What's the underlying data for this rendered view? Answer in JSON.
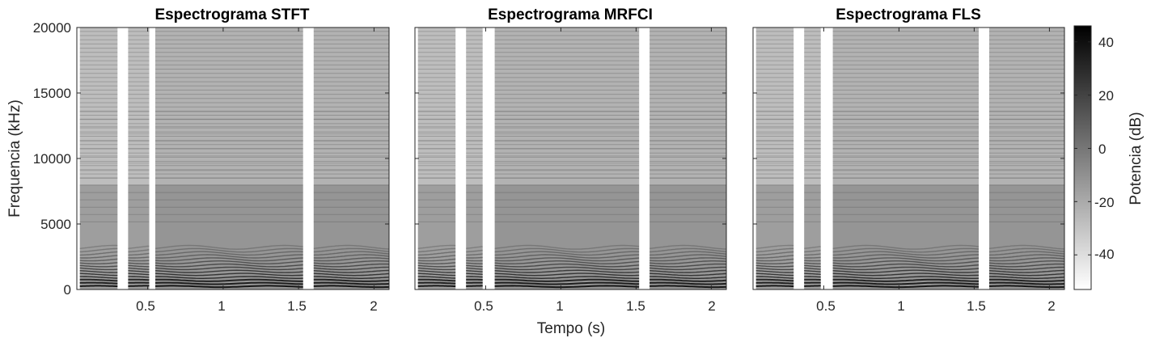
{
  "figure": {
    "x_label": "Tempo (s)",
    "y_label": "Frequencia (kHz)",
    "colorbar_label": "Potencia (dB)"
  },
  "chart_data": [
    {
      "type": "heatmap",
      "title": "Espectrograma STFT",
      "xlim": [
        0.03,
        2.1
      ],
      "ylim": [
        0,
        20000
      ],
      "x_ticks": [
        0.5,
        1,
        1.5,
        2
      ],
      "x_tick_labels": [
        "0.5",
        "1",
        "1.5",
        "2"
      ],
      "y_ticks": [
        0,
        5000,
        10000,
        15000,
        20000
      ],
      "y_tick_labels": [
        "0",
        "5000",
        "10000",
        "15000",
        "20000"
      ],
      "colormap": "gray-reversed",
      "voiced_segments_s": [
        [
          0.05,
          0.3
        ],
        [
          0.37,
          0.51
        ],
        [
          0.55,
          1.53
        ],
        [
          1.6,
          2.1
        ]
      ]
    },
    {
      "type": "heatmap",
      "title": "Espectrograma MRFCI",
      "xlim": [
        0.03,
        2.1
      ],
      "ylim": [
        0,
        20000
      ],
      "x_ticks": [
        0.5,
        1,
        1.5,
        2
      ],
      "x_tick_labels": [
        "0.5",
        "1",
        "1.5",
        "2"
      ],
      "colormap": "gray-reversed",
      "voiced_segments_s": [
        [
          0.05,
          0.3
        ],
        [
          0.37,
          0.48
        ],
        [
          0.56,
          1.52
        ],
        [
          1.59,
          2.1
        ]
      ]
    },
    {
      "type": "heatmap",
      "title": "Espectrograma FLS",
      "xlim": [
        0.03,
        2.1
      ],
      "ylim": [
        0,
        20000
      ],
      "x_ticks": [
        0.5,
        1,
        1.5,
        2
      ],
      "x_tick_labels": [
        "0.5",
        "1",
        "1.5",
        "2"
      ],
      "colormap": "gray-reversed",
      "voiced_segments_s": [
        [
          0.05,
          0.3
        ],
        [
          0.37,
          0.48
        ],
        [
          0.56,
          1.53
        ],
        [
          1.6,
          2.1
        ]
      ]
    }
  ],
  "colorbar": {
    "range": [
      -53,
      46
    ],
    "ticks": [
      -40,
      -20,
      0,
      20,
      40
    ],
    "tick_labels": [
      "-40",
      "-20",
      "0",
      "20",
      "40"
    ],
    "colors": [
      "#ffffff",
      "#000000"
    ]
  }
}
